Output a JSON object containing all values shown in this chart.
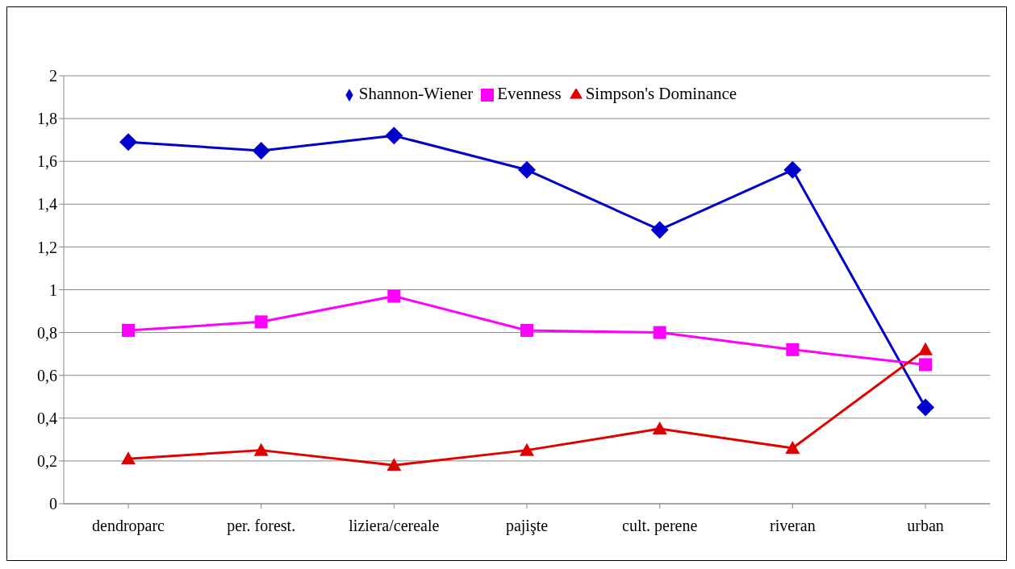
{
  "chart_data": {
    "type": "line",
    "categories": [
      "dendroparc",
      "per. forest.",
      "liziera/cereale",
      "pajişte",
      "cult. perene",
      "riveran",
      "urban"
    ],
    "series": [
      {
        "name": "Shannon-Wiener",
        "color": "#0000cc",
        "marker": "diamond",
        "values": [
          1.69,
          1.65,
          1.72,
          1.56,
          1.28,
          1.56,
          0.45
        ]
      },
      {
        "name": "Evenness",
        "color": "#ff00ff",
        "marker": "square",
        "values": [
          0.81,
          0.85,
          0.97,
          0.81,
          0.8,
          0.72,
          0.65
        ]
      },
      {
        "name": "Simpson's Dominance",
        "color": "#e00000",
        "marker": "triangle",
        "values": [
          0.21,
          0.25,
          0.18,
          0.25,
          0.35,
          0.26,
          0.72
        ]
      }
    ],
    "ylim": [
      0,
      2
    ],
    "yticks": [
      {
        "value": 0,
        "label": "0"
      },
      {
        "value": 0.2,
        "label": "0,2"
      },
      {
        "value": 0.4,
        "label": "0,4"
      },
      {
        "value": 0.6,
        "label": "0,6"
      },
      {
        "value": 0.8,
        "label": "0,8"
      },
      {
        "value": 1,
        "label": "1"
      },
      {
        "value": 1.2,
        "label": "1,2"
      },
      {
        "value": 1.4,
        "label": "1,4"
      },
      {
        "value": 1.6,
        "label": "1,6"
      },
      {
        "value": 1.8,
        "label": "1,8"
      },
      {
        "value": 2,
        "label": "2"
      }
    ],
    "grid": "y",
    "legend": "top",
    "line_style": "solid"
  }
}
